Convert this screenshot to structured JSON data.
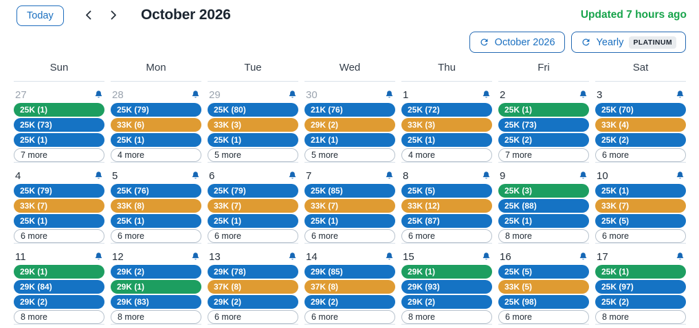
{
  "header": {
    "today_label": "Today",
    "title": "October 2026",
    "updated_text": "Updated 7 hours ago",
    "month_refresh_label": "October 2026",
    "yearly_label": "Yearly",
    "yearly_badge": "PLATINUM"
  },
  "colors": {
    "blue": "#1573c4",
    "green": "#1d9e60",
    "orange": "#df9b32",
    "accent_blue": "#1a6fc0",
    "updated_green": "#16a34a",
    "bell_blue": "#1567b5"
  },
  "calendar": {
    "weekday_headers": [
      "Sun",
      "Mon",
      "Tue",
      "Wed",
      "Thu",
      "Fri",
      "Sat"
    ],
    "weeks": [
      {
        "days": [
          {
            "date": "27",
            "outside": true,
            "bell": true,
            "pills": [
              {
                "label": "25K (1)",
                "color": "green"
              },
              {
                "label": "25K (73)",
                "color": "blue"
              },
              {
                "label": "25K (1)",
                "color": "blue"
              }
            ],
            "more": "7 more"
          },
          {
            "date": "28",
            "outside": true,
            "bell": true,
            "pills": [
              {
                "label": "25K (79)",
                "color": "blue"
              },
              {
                "label": "33K (6)",
                "color": "orange"
              },
              {
                "label": "25K (1)",
                "color": "blue"
              }
            ],
            "more": "4 more"
          },
          {
            "date": "29",
            "outside": true,
            "bell": true,
            "pills": [
              {
                "label": "25K (80)",
                "color": "blue"
              },
              {
                "label": "33K (3)",
                "color": "orange"
              },
              {
                "label": "25K (1)",
                "color": "blue"
              }
            ],
            "more": "5 more"
          },
          {
            "date": "30",
            "outside": true,
            "bell": true,
            "pills": [
              {
                "label": "21K (76)",
                "color": "blue"
              },
              {
                "label": "29K (2)",
                "color": "orange"
              },
              {
                "label": "21K (1)",
                "color": "blue"
              }
            ],
            "more": "5 more"
          },
          {
            "date": "1",
            "outside": false,
            "bell": true,
            "pills": [
              {
                "label": "25K (72)",
                "color": "blue"
              },
              {
                "label": "33K (3)",
                "color": "orange"
              },
              {
                "label": "25K (1)",
                "color": "blue"
              }
            ],
            "more": "4 more"
          },
          {
            "date": "2",
            "outside": false,
            "bell": true,
            "pills": [
              {
                "label": "25K (1)",
                "color": "green"
              },
              {
                "label": "25K (73)",
                "color": "blue"
              },
              {
                "label": "25K (2)",
                "color": "blue"
              }
            ],
            "more": "7 more"
          },
          {
            "date": "3",
            "outside": false,
            "bell": true,
            "pills": [
              {
                "label": "25K (70)",
                "color": "blue"
              },
              {
                "label": "33K (4)",
                "color": "orange"
              },
              {
                "label": "25K (2)",
                "color": "blue"
              }
            ],
            "more": "6 more"
          }
        ]
      },
      {
        "days": [
          {
            "date": "4",
            "outside": false,
            "bell": true,
            "pills": [
              {
                "label": "25K (79)",
                "color": "blue"
              },
              {
                "label": "33K (7)",
                "color": "orange"
              },
              {
                "label": "25K (1)",
                "color": "blue"
              }
            ],
            "more": "6 more"
          },
          {
            "date": "5",
            "outside": false,
            "bell": true,
            "pills": [
              {
                "label": "25K (76)",
                "color": "blue"
              },
              {
                "label": "33K (8)",
                "color": "orange"
              },
              {
                "label": "25K (1)",
                "color": "blue"
              }
            ],
            "more": "6 more"
          },
          {
            "date": "6",
            "outside": false,
            "bell": true,
            "pills": [
              {
                "label": "25K (79)",
                "color": "blue"
              },
              {
                "label": "33K (7)",
                "color": "orange"
              },
              {
                "label": "25K (1)",
                "color": "blue"
              }
            ],
            "more": "6 more"
          },
          {
            "date": "7",
            "outside": false,
            "bell": true,
            "pills": [
              {
                "label": "25K (85)",
                "color": "blue"
              },
              {
                "label": "33K (7)",
                "color": "orange"
              },
              {
                "label": "25K (1)",
                "color": "blue"
              }
            ],
            "more": "6 more"
          },
          {
            "date": "8",
            "outside": false,
            "bell": true,
            "pills": [
              {
                "label": "25K (5)",
                "color": "blue"
              },
              {
                "label": "33K (12)",
                "color": "orange"
              },
              {
                "label": "25K (87)",
                "color": "blue"
              }
            ],
            "more": "6 more"
          },
          {
            "date": "9",
            "outside": false,
            "bell": true,
            "pills": [
              {
                "label": "25K (3)",
                "color": "green"
              },
              {
                "label": "25K (88)",
                "color": "blue"
              },
              {
                "label": "25K (1)",
                "color": "blue"
              }
            ],
            "more": "8 more"
          },
          {
            "date": "10",
            "outside": false,
            "bell": true,
            "pills": [
              {
                "label": "25K (1)",
                "color": "blue"
              },
              {
                "label": "33K (7)",
                "color": "orange"
              },
              {
                "label": "25K (5)",
                "color": "blue"
              }
            ],
            "more": "6 more"
          }
        ]
      },
      {
        "days": [
          {
            "date": "11",
            "outside": false,
            "bell": true,
            "pills": [
              {
                "label": "29K (1)",
                "color": "green"
              },
              {
                "label": "29K (84)",
                "color": "blue"
              },
              {
                "label": "29K (2)",
                "color": "blue"
              }
            ],
            "more": "8 more"
          },
          {
            "date": "12",
            "outside": false,
            "bell": true,
            "pills": [
              {
                "label": "29K (2)",
                "color": "blue"
              },
              {
                "label": "29K (1)",
                "color": "green"
              },
              {
                "label": "29K (83)",
                "color": "blue"
              }
            ],
            "more": "8 more"
          },
          {
            "date": "13",
            "outside": false,
            "bell": true,
            "pills": [
              {
                "label": "29K (78)",
                "color": "blue"
              },
              {
                "label": "37K (8)",
                "color": "orange"
              },
              {
                "label": "29K (2)",
                "color": "blue"
              }
            ],
            "more": "6 more"
          },
          {
            "date": "14",
            "outside": false,
            "bell": true,
            "pills": [
              {
                "label": "29K (85)",
                "color": "blue"
              },
              {
                "label": "37K (8)",
                "color": "orange"
              },
              {
                "label": "29K (2)",
                "color": "blue"
              }
            ],
            "more": "6 more"
          },
          {
            "date": "15",
            "outside": false,
            "bell": true,
            "pills": [
              {
                "label": "29K (1)",
                "color": "green"
              },
              {
                "label": "29K (93)",
                "color": "blue"
              },
              {
                "label": "29K (2)",
                "color": "blue"
              }
            ],
            "more": "8 more"
          },
          {
            "date": "16",
            "outside": false,
            "bell": true,
            "pills": [
              {
                "label": "25K (5)",
                "color": "blue"
              },
              {
                "label": "33K (5)",
                "color": "orange"
              },
              {
                "label": "25K (98)",
                "color": "blue"
              }
            ],
            "more": "6 more"
          },
          {
            "date": "17",
            "outside": false,
            "bell": true,
            "pills": [
              {
                "label": "25K (1)",
                "color": "green"
              },
              {
                "label": "25K (97)",
                "color": "blue"
              },
              {
                "label": "25K (2)",
                "color": "blue"
              }
            ],
            "more": "8 more"
          }
        ]
      }
    ]
  }
}
